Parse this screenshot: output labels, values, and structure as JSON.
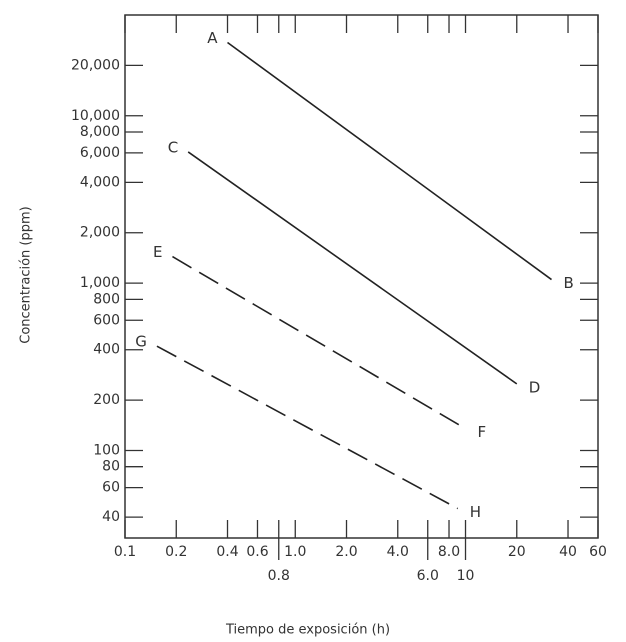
{
  "chart_data": {
    "type": "line",
    "x_label": "Tiempo de exposición (h)",
    "y_label": "Concentración (ppm)",
    "x_log": true,
    "y_log": true,
    "xlim": [
      0.1,
      60
    ],
    "ylim": [
      30,
      40000
    ],
    "xticks": [
      0.1,
      0.2,
      0.4,
      0.6,
      0.8,
      {
        "value": 1,
        "label": "1.0"
      },
      {
        "value": 2,
        "label": "2.0"
      },
      {
        "value": 4,
        "label": "4.0"
      },
      {
        "value": 6,
        "label": "6.0"
      },
      {
        "value": 8,
        "label": "8.0"
      },
      10,
      20,
      40,
      60
    ],
    "yticks": [
      40,
      60,
      80,
      100,
      200,
      400,
      600,
      800,
      {
        "value": 1000,
        "label": "1,000"
      },
      {
        "value": 2000,
        "label": "2,000"
      },
      {
        "value": 4000,
        "label": "4,000"
      },
      {
        "value": 6000,
        "label": "6,000"
      },
      {
        "value": 8000,
        "label": "8,000"
      },
      {
        "value": 10000,
        "label": "10,000"
      },
      {
        "value": 20000,
        "label": "20,000"
      }
    ],
    "series": [
      {
        "labels": [
          "A",
          "B"
        ],
        "color": "#222222",
        "style": "solid",
        "x": [
          0.4,
          32
        ],
        "values": [
          27400,
          1050
        ]
      },
      {
        "labels": [
          "C",
          "D"
        ],
        "color": "#222222",
        "style": "solid",
        "x": [
          0.235,
          20
        ],
        "values": [
          6080,
          250
        ]
      },
      {
        "labels": [
          "E",
          "F"
        ],
        "color": "#222222",
        "style": "dashed",
        "x": [
          0.19,
          10
        ],
        "values": [
          1440,
          135
        ]
      },
      {
        "labels": [
          "G",
          "H"
        ],
        "color": "#222222",
        "style": "dashed",
        "x": [
          0.154,
          9
        ],
        "values": [
          420,
          45
        ]
      }
    ]
  }
}
